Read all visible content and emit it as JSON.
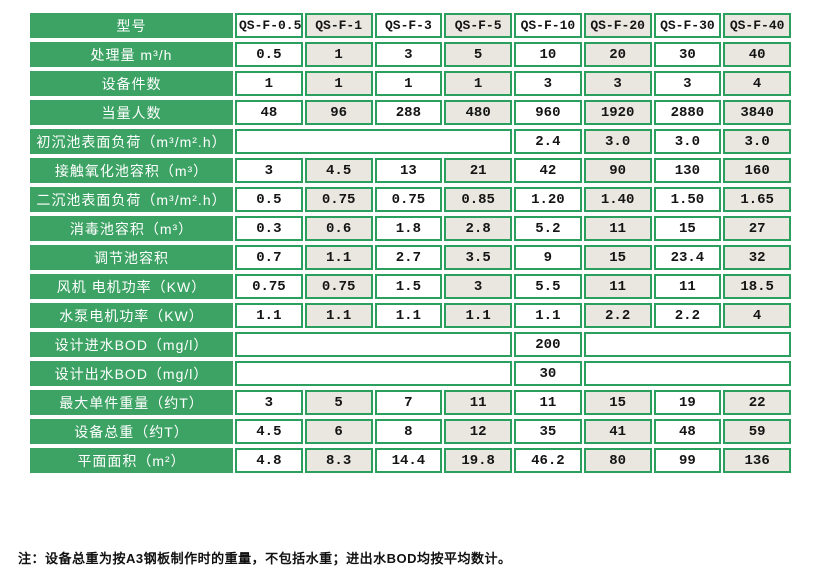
{
  "table": {
    "header": {
      "label": "型号",
      "models": [
        "QS-F-0.5",
        "QS-F-1",
        "QS-F-3",
        "QS-F-5",
        "QS-F-10",
        "QS-F-20",
        "QS-F-30",
        "QS-F-40"
      ]
    },
    "rows": [
      {
        "label": "处理量 m³/h",
        "cells": [
          {
            "t": "0.5"
          },
          {
            "t": "1"
          },
          {
            "t": "3"
          },
          {
            "t": "5"
          },
          {
            "t": "10"
          },
          {
            "t": "20"
          },
          {
            "t": "30"
          },
          {
            "t": "40"
          }
        ]
      },
      {
        "label": "设备件数",
        "cells": [
          {
            "t": "1"
          },
          {
            "t": "1"
          },
          {
            "t": "1"
          },
          {
            "t": "1"
          },
          {
            "t": "3"
          },
          {
            "t": "3"
          },
          {
            "t": "3"
          },
          {
            "t": "4"
          }
        ]
      },
      {
        "label": "当量人数",
        "cells": [
          {
            "t": "48"
          },
          {
            "t": "96"
          },
          {
            "t": "288"
          },
          {
            "t": "480"
          },
          {
            "t": "960"
          },
          {
            "t": "1920"
          },
          {
            "t": "2880"
          },
          {
            "t": "3840"
          }
        ]
      },
      {
        "label": "初沉池表面负荷（m³/m².h）",
        "cells": [
          {
            "t": "",
            "span": 4
          },
          {
            "t": "2.4"
          },
          {
            "t": "3.0"
          },
          {
            "t": "3.0"
          },
          {
            "t": "3.0"
          }
        ]
      },
      {
        "label": "接触氧化池容积（m³）",
        "cells": [
          {
            "t": "3"
          },
          {
            "t": "4.5"
          },
          {
            "t": "13"
          },
          {
            "t": "21"
          },
          {
            "t": "42"
          },
          {
            "t": "90"
          },
          {
            "t": "130"
          },
          {
            "t": "160"
          }
        ]
      },
      {
        "label": "二沉池表面负荷（m³/m².h）",
        "cells": [
          {
            "t": "0.5"
          },
          {
            "t": "0.75"
          },
          {
            "t": "0.75"
          },
          {
            "t": "0.85"
          },
          {
            "t": "1.20"
          },
          {
            "t": "1.40"
          },
          {
            "t": "1.50"
          },
          {
            "t": "1.65"
          }
        ]
      },
      {
        "label": "消毒池容积（m³）",
        "cells": [
          {
            "t": "0.3"
          },
          {
            "t": "0.6"
          },
          {
            "t": "1.8"
          },
          {
            "t": "2.8"
          },
          {
            "t": "5.2"
          },
          {
            "t": "11"
          },
          {
            "t": "15"
          },
          {
            "t": "27"
          }
        ]
      },
      {
        "label": "调节池容积",
        "cells": [
          {
            "t": "0.7"
          },
          {
            "t": "1.1"
          },
          {
            "t": "2.7"
          },
          {
            "t": "3.5"
          },
          {
            "t": "9"
          },
          {
            "t": "15"
          },
          {
            "t": "23.4"
          },
          {
            "t": "32"
          }
        ]
      },
      {
        "label": "风机 电机功率（KW）",
        "cells": [
          {
            "t": "0.75"
          },
          {
            "t": "0.75"
          },
          {
            "t": "1.5"
          },
          {
            "t": "3"
          },
          {
            "t": "5.5"
          },
          {
            "t": "11"
          },
          {
            "t": "11"
          },
          {
            "t": "18.5"
          }
        ]
      },
      {
        "label": "水泵电机功率（KW）",
        "cells": [
          {
            "t": "1.1"
          },
          {
            "t": "1.1"
          },
          {
            "t": "1.1"
          },
          {
            "t": "1.1"
          },
          {
            "t": "1.1"
          },
          {
            "t": "2.2"
          },
          {
            "t": "2.2"
          },
          {
            "t": "4"
          }
        ]
      },
      {
        "label": "设计进水BOD（mg/l）",
        "cells": [
          {
            "t": "",
            "span": 4
          },
          {
            "t": "200"
          },
          {
            "t": "",
            "span": 3
          }
        ]
      },
      {
        "label": "设计出水BOD（mg/l）",
        "cells": [
          {
            "t": "",
            "span": 4
          },
          {
            "t": "30"
          },
          {
            "t": "",
            "span": 3
          }
        ]
      },
      {
        "label": "最大单件重量（约T）",
        "cells": [
          {
            "t": "3"
          },
          {
            "t": "5"
          },
          {
            "t": "7"
          },
          {
            "t": "11"
          },
          {
            "t": "11"
          },
          {
            "t": "15"
          },
          {
            "t": "19"
          },
          {
            "t": "22"
          }
        ]
      },
      {
        "label": "设备总重（约T）",
        "cells": [
          {
            "t": "4.5"
          },
          {
            "t": "6"
          },
          {
            "t": "8"
          },
          {
            "t": "12"
          },
          {
            "t": "35"
          },
          {
            "t": "41"
          },
          {
            "t": "48"
          },
          {
            "t": "59"
          }
        ]
      },
      {
        "label": "平面面积（m²）",
        "cells": [
          {
            "t": "4.8"
          },
          {
            "t": "8.3"
          },
          {
            "t": "14.4"
          },
          {
            "t": "19.8"
          },
          {
            "t": "46.2"
          },
          {
            "t": "80"
          },
          {
            "t": "99"
          },
          {
            "t": "136"
          }
        ]
      }
    ]
  },
  "note": "注：设备总重为按A3钢板制作时的重量，不包括水重；进出水BOD均按平均数计。",
  "colors": {
    "header_green": "#3da365",
    "grid_green": "#2ba05e",
    "cell_beige": "#e9e7df",
    "cell_white": "#ffffff",
    "label_text": "#ffffff",
    "value_text": "#141414"
  }
}
